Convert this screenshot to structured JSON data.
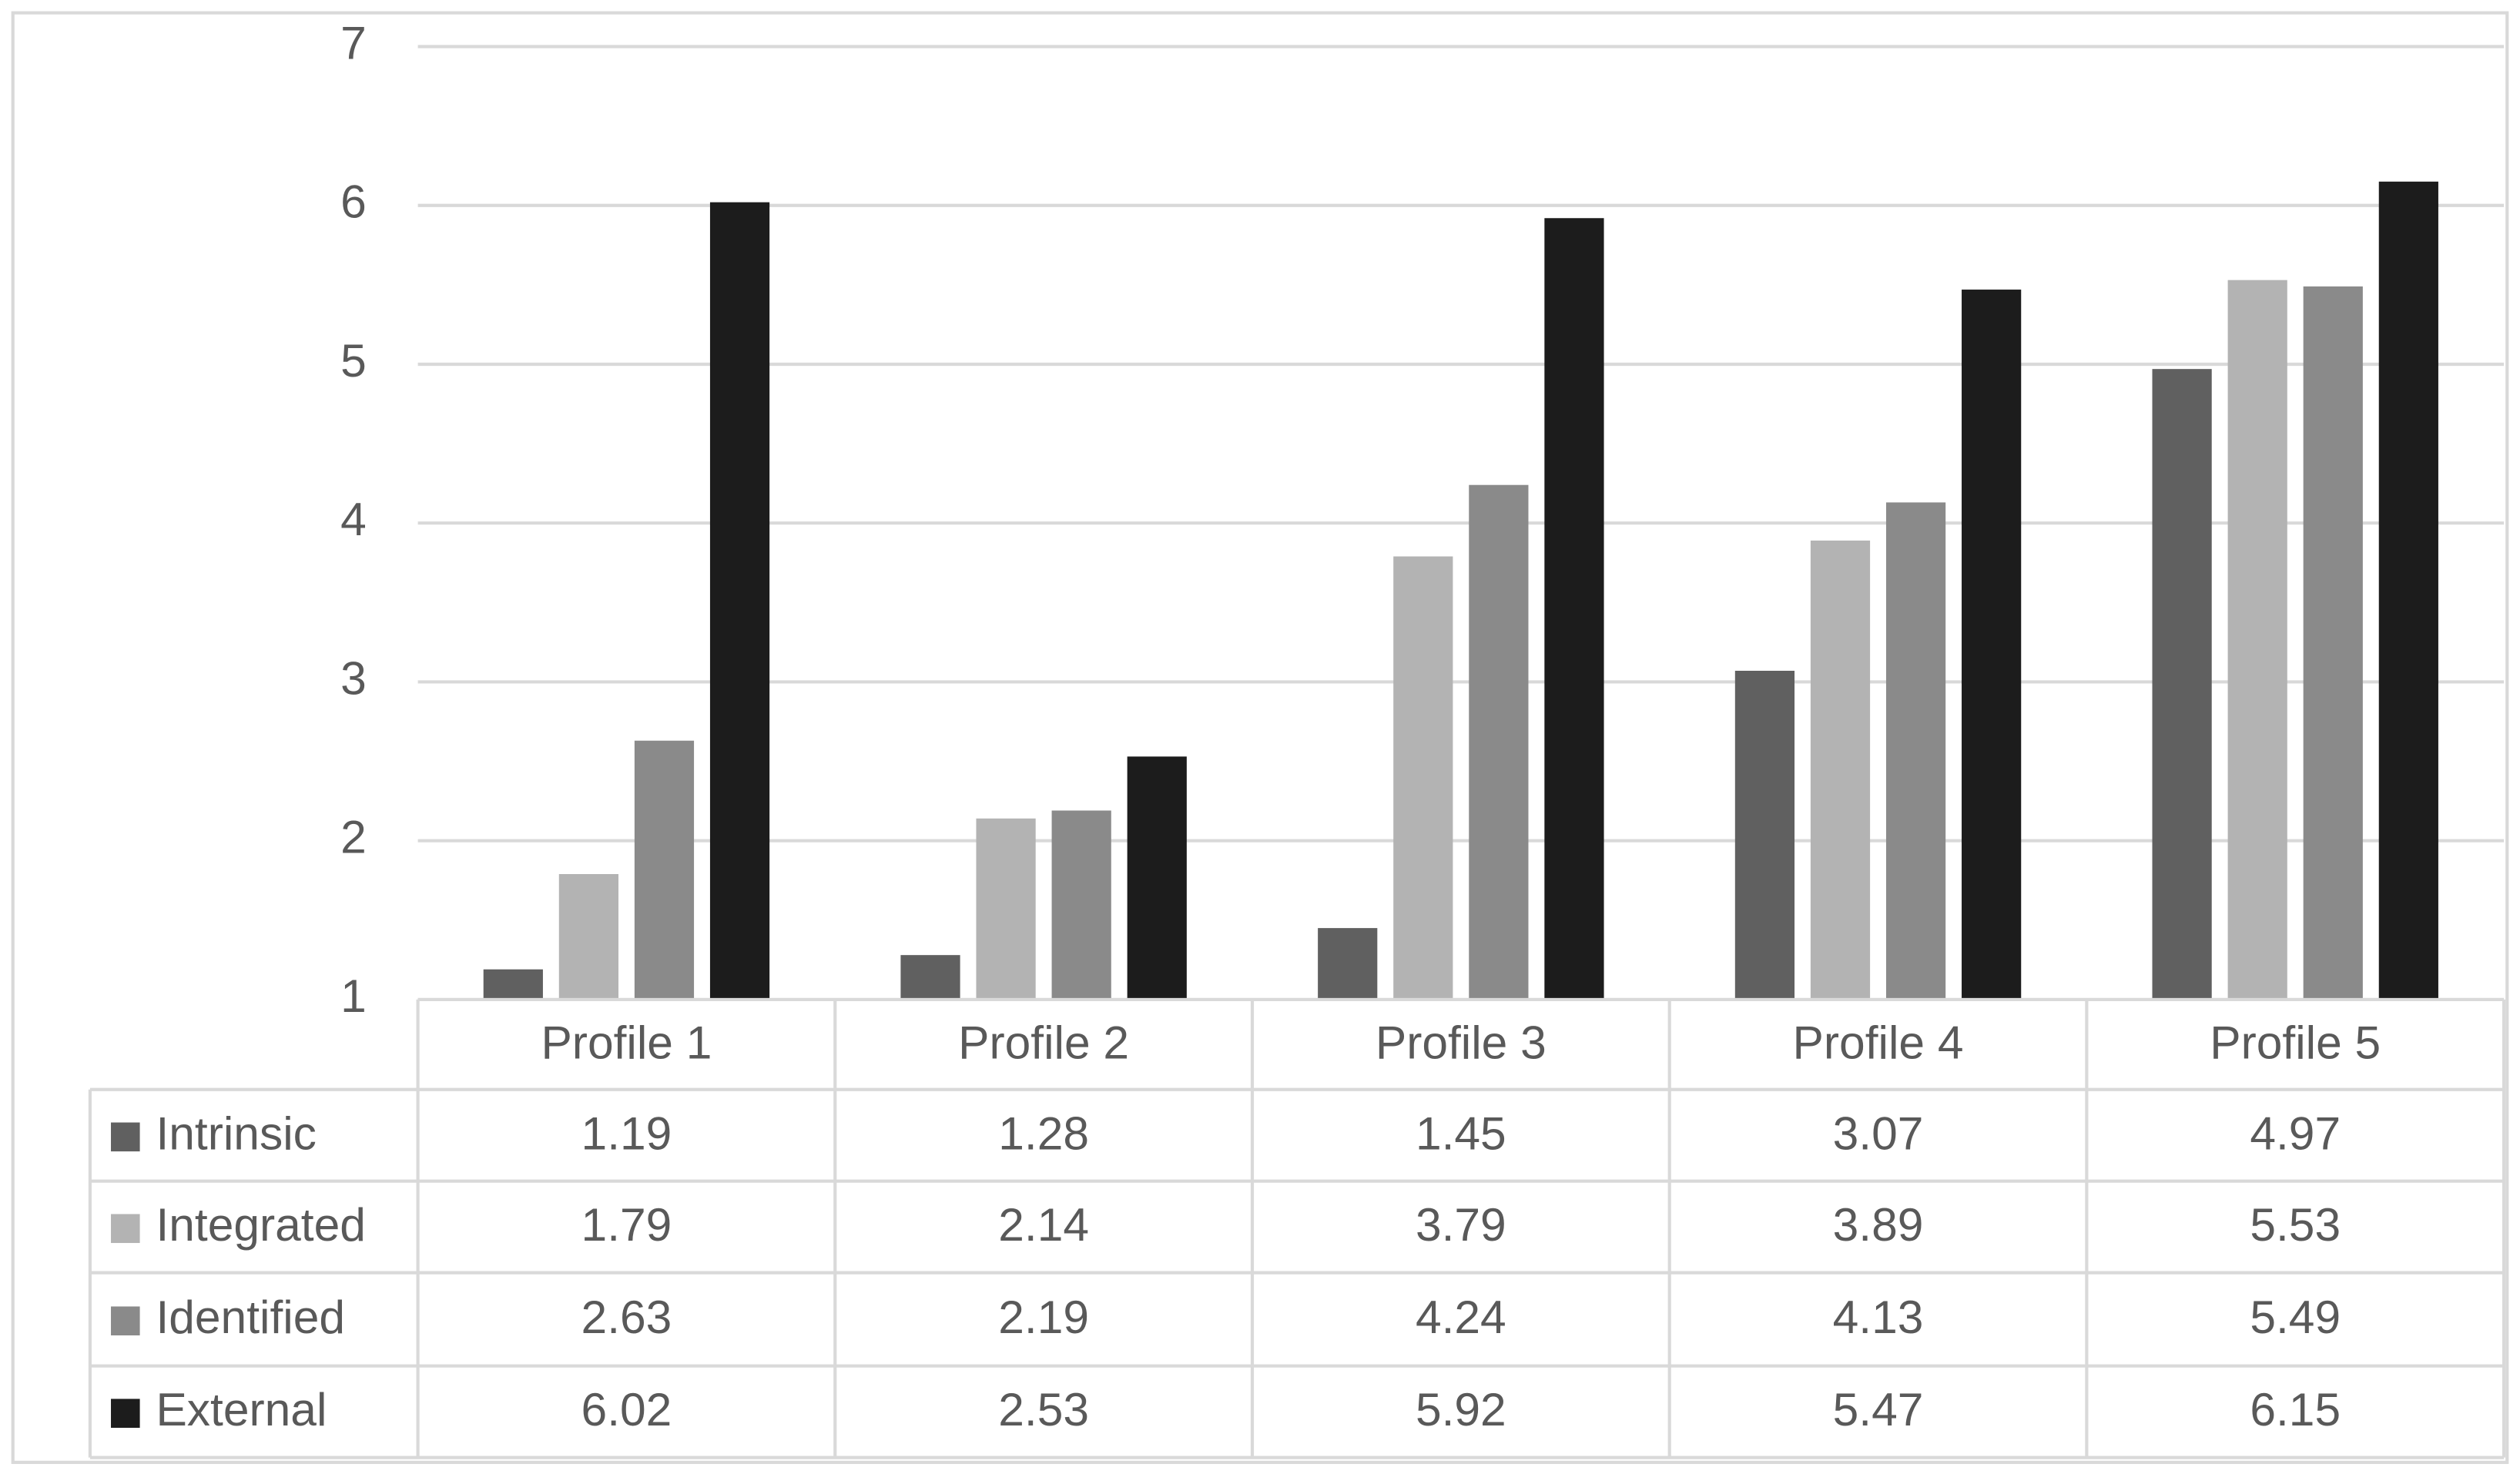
{
  "chart_data": {
    "type": "bar",
    "categories": [
      "Profile 1",
      "Profile 2",
      "Profile 3",
      "Profile 4",
      "Profile 5"
    ],
    "series": [
      {
        "name": "Intrinsic",
        "color": "#606060",
        "values": [
          1.19,
          1.28,
          1.45,
          3.07,
          4.97
        ]
      },
      {
        "name": "Integrated",
        "color": "#b3b3b3",
        "values": [
          1.79,
          2.14,
          3.79,
          3.89,
          5.53
        ]
      },
      {
        "name": "Identified",
        "color": "#8a8a8a",
        "values": [
          2.63,
          2.19,
          4.24,
          4.13,
          5.49
        ]
      },
      {
        "name": "External",
        "color": "#1c1c1c",
        "values": [
          6.02,
          2.53,
          5.92,
          5.47,
          6.15
        ]
      }
    ],
    "ylim": [
      1,
      7
    ],
    "yticks": [
      1,
      2,
      3,
      4,
      5,
      6,
      7
    ],
    "grid": true
  }
}
